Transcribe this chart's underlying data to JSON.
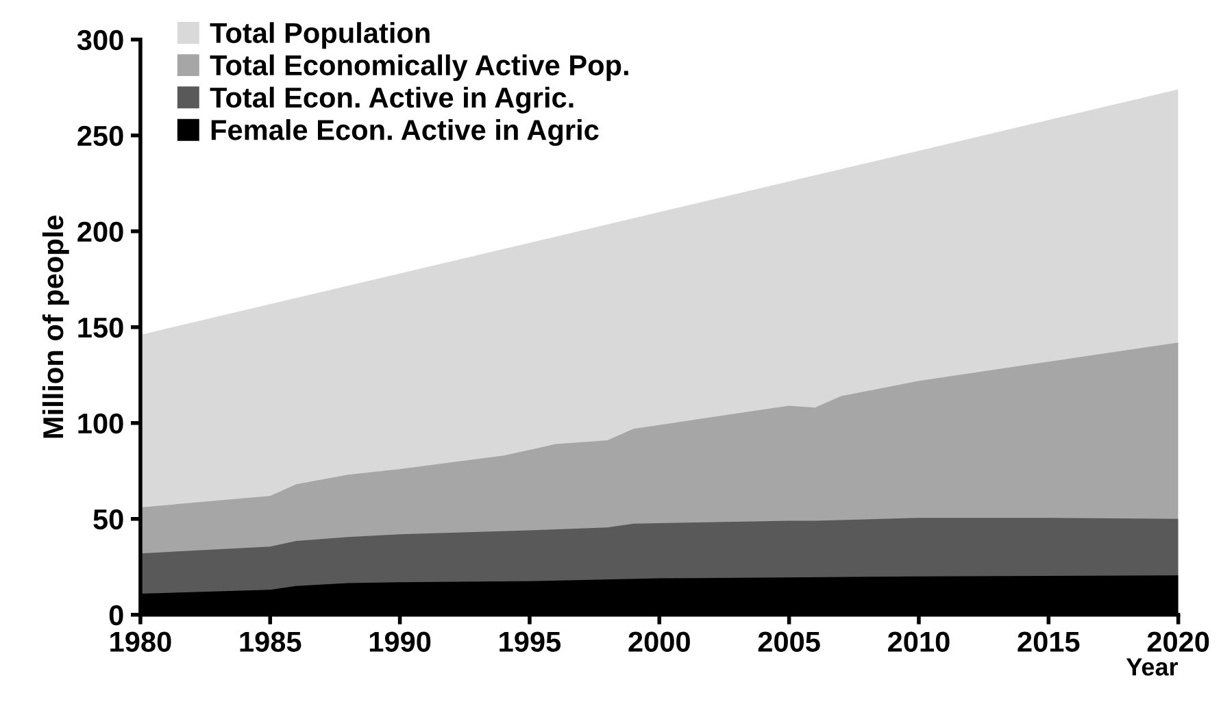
{
  "chart_data": {
    "type": "area",
    "xlabel": "Year",
    "ylabel": "Million of people",
    "xlim": [
      1980,
      2020
    ],
    "ylim": [
      0,
      300
    ],
    "xticks": [
      1980,
      1985,
      1990,
      1995,
      2000,
      2005,
      2010,
      2015,
      2020
    ],
    "yticks": [
      0,
      50,
      100,
      150,
      200,
      250,
      300
    ],
    "grid": false,
    "legend": "top left",
    "series": [
      {
        "name": "Total Population",
        "color": "#d9d9d9",
        "x": [
          1980,
          2020
        ],
        "values": [
          146,
          274
        ]
      },
      {
        "name": "Total Economically Active Pop.",
        "color": "#a6a6a6",
        "x": [
          1980,
          1985,
          1986,
          1988,
          1990,
          1994,
          1996,
          1998,
          1999,
          2001,
          2005,
          2006,
          2007,
          2010,
          2015,
          2020
        ],
        "values": [
          56,
          62,
          68,
          73,
          76,
          83,
          89,
          91,
          97,
          101,
          109,
          108,
          114,
          122,
          132,
          142
        ]
      },
      {
        "name": "Total Econ. Active in Agric.",
        "color": "#595959",
        "x": [
          1980,
          1985,
          1986,
          1988,
          1990,
          1995,
          1998,
          1999,
          2001,
          2005,
          2006,
          2010,
          2015,
          2020
        ],
        "values": [
          32,
          35.5,
          38.5,
          40.5,
          42,
          44,
          45.5,
          47.5,
          48,
          49,
          49,
          50.5,
          50.5,
          50
        ]
      },
      {
        "name": "Female Econ. Active in Agric",
        "color": "#000000",
        "x": [
          1980,
          1985,
          1986,
          1988,
          1990,
          1995,
          2000,
          2005,
          2010,
          2020
        ],
        "values": [
          11,
          13,
          15,
          16.5,
          17,
          17.5,
          19,
          19.5,
          20,
          20.5
        ]
      }
    ]
  }
}
